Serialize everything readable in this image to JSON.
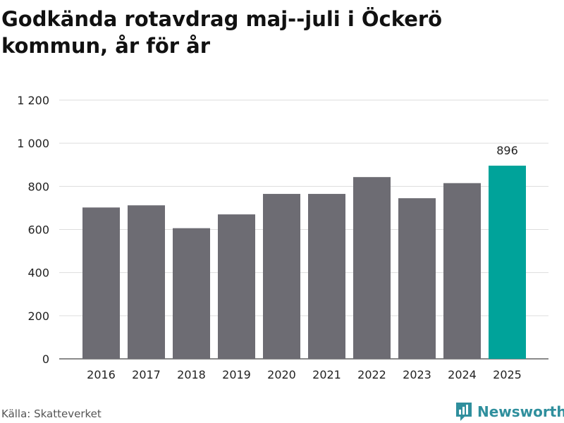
{
  "title": "Godkända rotavdrag maj--juli i Öckerö kommun, år för år",
  "source": "Källa: Skatteverket",
  "brand": "Newsworthy",
  "colors": {
    "bar": "#6d6c73",
    "highlight": "#00a39a",
    "grid": "#dddddd",
    "brand": "#2f8f9d"
  },
  "chart_data": {
    "type": "bar",
    "categories": [
      "2016",
      "2017",
      "2018",
      "2019",
      "2020",
      "2021",
      "2022",
      "2023",
      "2024",
      "2025"
    ],
    "values": [
      702,
      712,
      606,
      670,
      765,
      765,
      843,
      745,
      815,
      896
    ],
    "highlight_index": 9,
    "data_labels": [
      {
        "index": 9,
        "text": "896"
      }
    ],
    "yticks": [
      0,
      200,
      400,
      600,
      800,
      1000,
      1200
    ],
    "ytick_labels": [
      "0",
      "200",
      "400",
      "600",
      "800",
      "1 000",
      "1 200"
    ],
    "ylim": [
      0,
      1200
    ],
    "grid": true,
    "xlabel": "",
    "ylabel": ""
  }
}
